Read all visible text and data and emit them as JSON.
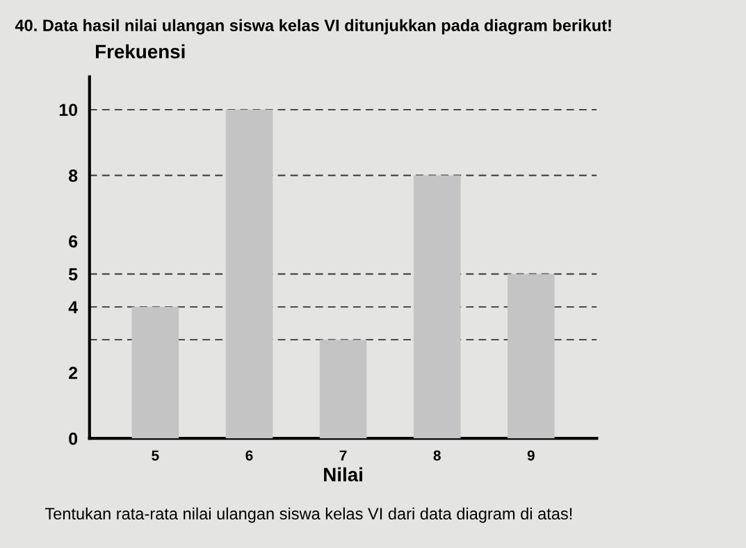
{
  "chart_data": {
    "type": "bar",
    "title": "40. Data hasil nilai ulangan siswa kelas VI ditunjukkan pada diagram berikut!",
    "xlabel": "Nilai",
    "ylabel": "Frekuensi",
    "categories": [
      "5",
      "6",
      "7",
      "8",
      "9"
    ],
    "values": [
      4,
      10,
      3,
      8,
      5
    ],
    "color": "#c4c4c4",
    "ylim": [
      0,
      11
    ],
    "yticks": [
      0,
      2,
      4,
      5,
      6,
      8,
      10
    ],
    "grid": false,
    "ref_lines": [
      {
        "axis": "y",
        "value": 10,
        "line_style": "dashed",
        "color": "#333333"
      },
      {
        "axis": "y",
        "value": 8,
        "line_style": "dashed",
        "color": "#333333"
      },
      {
        "axis": "y",
        "value": 5,
        "line_style": "dashed",
        "color": "#333333"
      },
      {
        "axis": "y",
        "value": 4,
        "line_style": "dashed",
        "color": "#333333"
      },
      {
        "axis": "y",
        "value": 3,
        "line_style": "dashed",
        "color": "#333333"
      }
    ],
    "annotations": [
      "Tentukan rata-rata nilai ulangan siswa kelas VI dari data diagram di atas!"
    ]
  }
}
